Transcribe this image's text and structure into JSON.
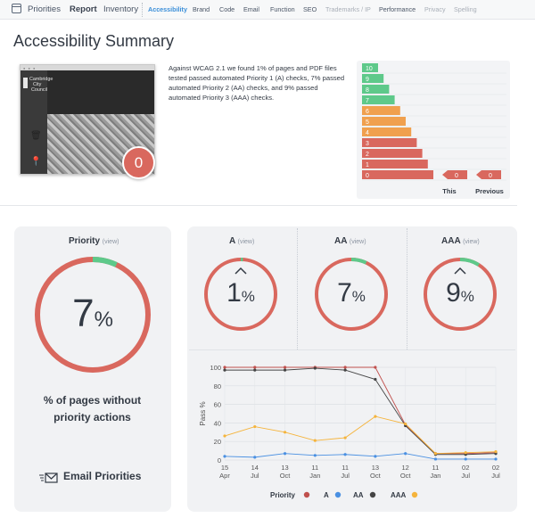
{
  "nav": {
    "main": [
      "Priorities",
      "Report",
      "Inventory"
    ],
    "sub": [
      "Accessibility",
      "Brand",
      "Code",
      "Email",
      "Function",
      "SEO",
      "Trademarks / IP",
      "Performance",
      "Privacy",
      "Spelling"
    ],
    "active_sub": "Accessibility"
  },
  "page_title": "Accessibility Summary",
  "thumbnail": {
    "site_name": [
      "Cambridge",
      "City",
      "Council"
    ],
    "score": "0",
    "score_color": "#d9685e"
  },
  "summary_text": "Against WCAG 2.1 we found 1% of pages and PDF files tested passed automated Priority 1 (A) checks, 7% passed automated Priority 2 (AA) checks, and 9% passed automated Priority 3 (AAA) checks.",
  "histogram": {
    "levels": [
      "10",
      "9",
      "8",
      "7",
      "6",
      "5",
      "4",
      "3",
      "2",
      "1",
      "0"
    ],
    "this_value": "0",
    "previous_value": "0",
    "this_label": "This",
    "previous_label": "Previous",
    "colors": {
      "green": "#5ec98a",
      "orange": "#f0a04e",
      "red": "#d9685e"
    }
  },
  "priority_card": {
    "title": "Priority",
    "view": "(view)",
    "percent": "7",
    "percent_sign": "%",
    "fill_fraction": 0.07,
    "description": [
      "% of pages without",
      "priority actions"
    ],
    "email_label": "Email Priorities"
  },
  "levels": [
    {
      "title": "A",
      "view": "(view)",
      "percent": "1",
      "sign": "%",
      "fill_fraction": 0.01,
      "arrow": true
    },
    {
      "title": "AA",
      "view": "(view)",
      "percent": "7",
      "sign": "%",
      "fill_fraction": 0.07,
      "arrow": false
    },
    {
      "title": "AAA",
      "view": "(view)",
      "percent": "9",
      "sign": "%",
      "fill_fraction": 0.09,
      "arrow": true
    }
  ],
  "colors": {
    "ring_red": "#d9685e",
    "ring_green": "#5ec98a"
  },
  "chart_data": {
    "type": "line",
    "ylabel": "Pass %",
    "ylim": [
      0,
      100
    ],
    "yticks": [
      0,
      20,
      40,
      60,
      80,
      100
    ],
    "x": [
      "15 Apr",
      "14 Jul",
      "13 Oct",
      "11 Jan",
      "11 Jul",
      "13 Oct",
      "12 Oct",
      "11 Jan",
      "02 Jul",
      "02 Jul"
    ],
    "x_tick_top": [
      "15",
      "14",
      "13",
      "11",
      "11",
      "13",
      "12",
      "11",
      "02",
      "02"
    ],
    "x_tick_bottom": [
      "Apr",
      "Jul",
      "Oct",
      "Jan",
      "Jul",
      "Oct",
      "Oct",
      "Jan",
      "Jul",
      "Jul"
    ],
    "series": [
      {
        "name": "Priority",
        "color": "#c0504d",
        "values": [
          100,
          100,
          100,
          100,
          100,
          100,
          38,
          7,
          7,
          8
        ]
      },
      {
        "name": "A",
        "color": "#4a90e2",
        "values": [
          4,
          3,
          7,
          5,
          6,
          4,
          7,
          1,
          1,
          1
        ]
      },
      {
        "name": "AA",
        "color": "#444444",
        "values": [
          97,
          97,
          97,
          99,
          97,
          87,
          37,
          6,
          6,
          7
        ]
      },
      {
        "name": "AAA",
        "color": "#f5b43c",
        "values": [
          26,
          36,
          30,
          21,
          24,
          47,
          39,
          7,
          8,
          9
        ]
      }
    ],
    "grid": true,
    "legend": "bottom"
  }
}
